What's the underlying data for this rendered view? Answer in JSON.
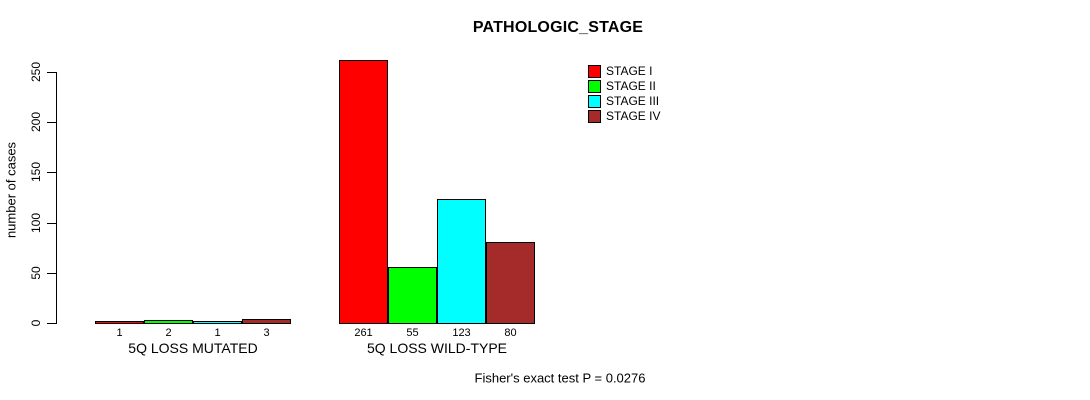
{
  "chart_data": {
    "type": "bar",
    "title": "PATHOLOGIC_STAGE",
    "ylabel": "number of cases",
    "ylim": [
      0,
      250
    ],
    "yticks": [
      0,
      50,
      100,
      150,
      200,
      250
    ],
    "grid": false,
    "legend_position": "top-right",
    "categories": [
      "5Q LOSS MUTATED",
      "5Q LOSS WILD-TYPE"
    ],
    "series": [
      {
        "name": "STAGE I",
        "color": "#FF0000",
        "values": [
          1,
          261
        ]
      },
      {
        "name": "STAGE II",
        "color": "#00FF00",
        "values": [
          2,
          55
        ]
      },
      {
        "name": "STAGE III",
        "color": "#00FFFF",
        "values": [
          1,
          123
        ]
      },
      {
        "name": "STAGE IV",
        "color": "#A52A2A",
        "values": [
          3,
          80
        ]
      }
    ],
    "bar_value_labels": [
      [
        "1",
        "2",
        "1",
        "3"
      ],
      [
        "261",
        "55",
        "123",
        "80"
      ]
    ],
    "annotation": "Fisher's exact test P = 0.0276"
  }
}
